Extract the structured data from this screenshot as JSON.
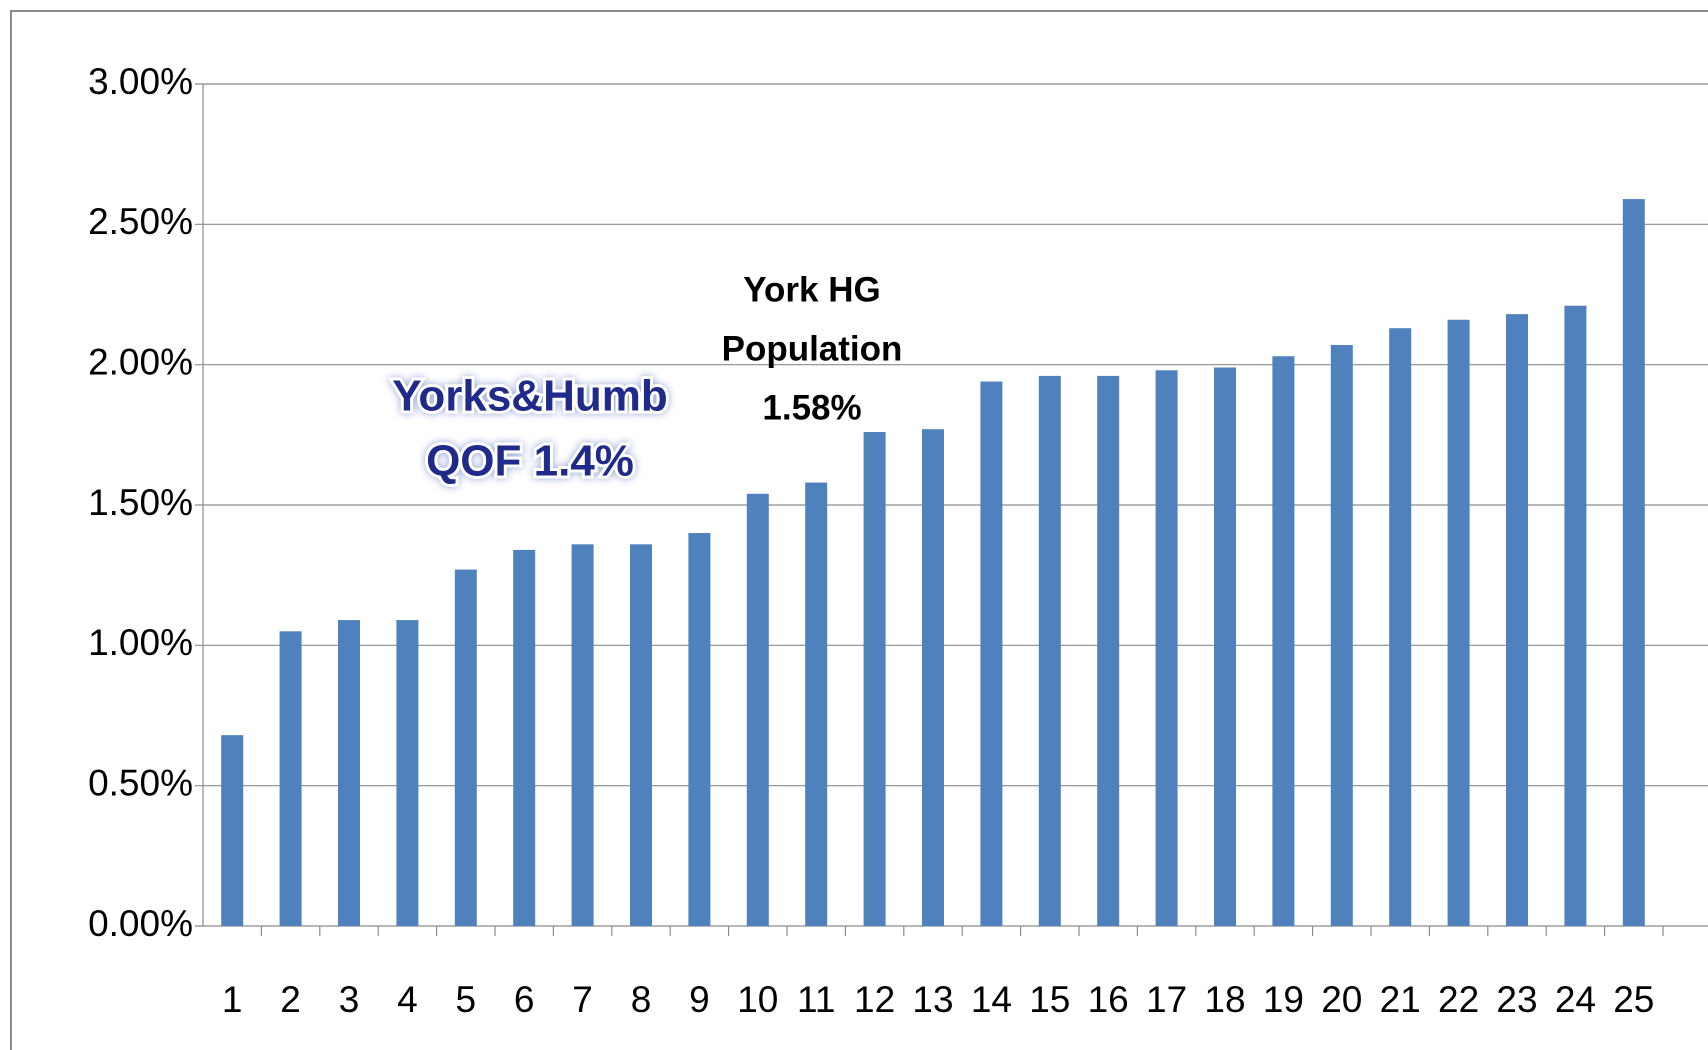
{
  "chart_data": {
    "type": "bar",
    "categories": [
      "1",
      "2",
      "3",
      "4",
      "5",
      "6",
      "7",
      "8",
      "9",
      "10",
      "11",
      "12",
      "13",
      "14",
      "15",
      "16",
      "17",
      "18",
      "19",
      "20",
      "21",
      "22",
      "23",
      "24",
      "25"
    ],
    "values": [
      0.68,
      1.05,
      1.09,
      1.09,
      1.27,
      1.34,
      1.36,
      1.36,
      1.4,
      1.54,
      1.58,
      1.76,
      1.77,
      1.94,
      1.96,
      1.96,
      1.98,
      1.99,
      2.03,
      2.07,
      2.13,
      2.16,
      2.18,
      2.21,
      2.59
    ],
    "color": "#4f81bd",
    "ylim": [
      0,
      3
    ],
    "yticks": [
      {
        "value": 0,
        "label": "0.00%"
      },
      {
        "value": 0.5,
        "label": "0.50%"
      },
      {
        "value": 1,
        "label": "1.00%"
      },
      {
        "value": 1.5,
        "label": "1.50%"
      },
      {
        "value": 2,
        "label": "2.00%"
      },
      {
        "value": 2.5,
        "label": "2.50%"
      },
      {
        "value": 3,
        "label": "3.00%"
      }
    ],
    "grid": true,
    "annotations": [
      {
        "lines": [
          "York HG",
          "Population",
          "1.58%"
        ]
      },
      {
        "lines": [
          "Yorks&Humb",
          "QOF 1.4%"
        ]
      }
    ]
  }
}
